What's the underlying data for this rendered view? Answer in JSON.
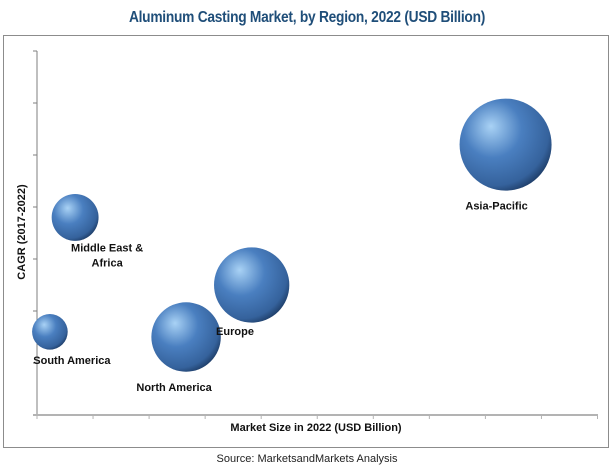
{
  "chart_data": {
    "type": "scatter",
    "subtype": "bubble",
    "title": "Aluminum Casting Market, by Region, 2022 (USD Billion)",
    "xlabel": "Market Size in 2022 (USD Billion)",
    "ylabel": "CAGR (2017-2022)",
    "xlim": [
      0,
      10
    ],
    "ylim": [
      0,
      7
    ],
    "x_tick_count": 11,
    "y_tick_count": 8,
    "tick_labels_shown": false,
    "grid": false,
    "legend": "none",
    "size_note": "bubble sizes relative to largest (Asia-Pacific = 1.0)",
    "points": [
      {
        "label": "South America",
        "x": 0.23,
        "y": 1.6,
        "size": 0.15
      },
      {
        "label": "Middle East & Africa",
        "x": 0.68,
        "y": 3.8,
        "size": 0.26
      },
      {
        "label": "North America",
        "x": 2.66,
        "y": 1.5,
        "size": 0.57
      },
      {
        "label": "Europe",
        "x": 3.83,
        "y": 2.5,
        "size": 0.67
      },
      {
        "label": "Asia-Pacific",
        "x": 8.36,
        "y": 5.2,
        "size": 1.0
      }
    ],
    "colors": {
      "bubble_highlight": "#a9d2f5",
      "bubble_base": "#4a7fc0",
      "bubble_edge": "#1c3a63",
      "title": "#1f4e79"
    }
  },
  "source": "Source: MarketsandMarkets Analysis"
}
